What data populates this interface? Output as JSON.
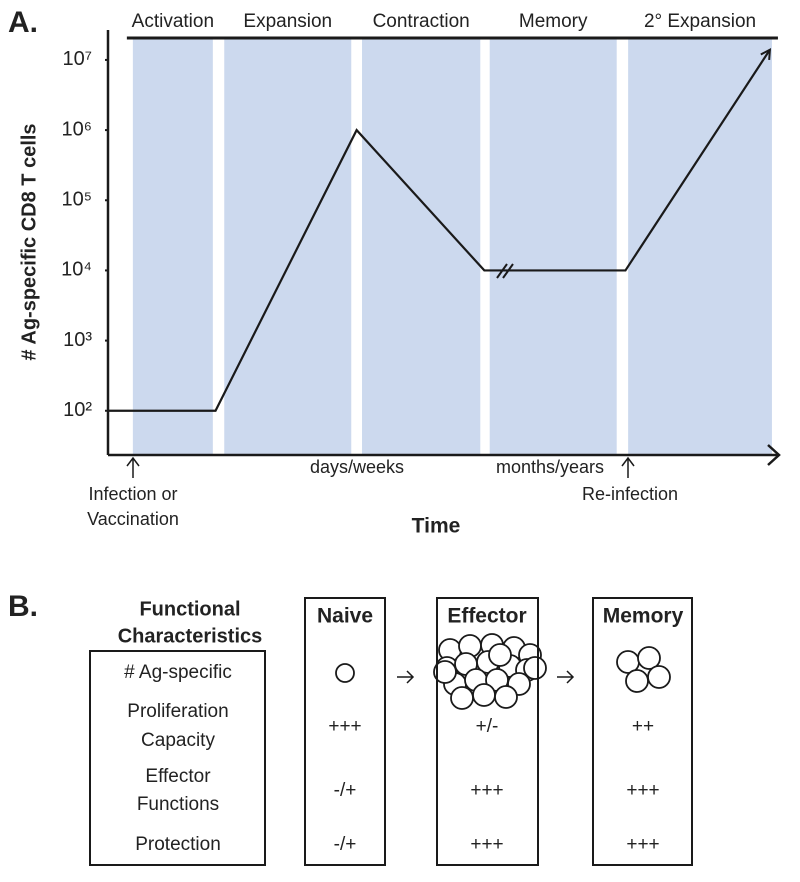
{
  "chart_data": {
    "type": "line",
    "panel_label": "A.",
    "y_label": "# Ag-specific CD8 T cells",
    "x_label": "Time",
    "log_y": true,
    "xlim": [
      0,
      100
    ],
    "ylim": [
      25,
      25000000
    ],
    "yticks": [
      {
        "value": 100,
        "label": "10²"
      },
      {
        "value": 1000,
        "label": "10³"
      },
      {
        "value": 10000,
        "label": "10⁴"
      },
      {
        "value": 100000,
        "label": "10⁵"
      },
      {
        "value": 1000000,
        "label": "10⁶"
      },
      {
        "value": 10000000,
        "label": "10⁷"
      }
    ],
    "x": [
      0,
      16,
      37,
      56,
      77,
      98.5
    ],
    "values": [
      100,
      100,
      1000000,
      10000,
      10000,
      14000000
    ],
    "color": "#1a1a1a",
    "band_color": "#ccd9ee",
    "phases": [
      {
        "label": "Activation",
        "start": 3.7,
        "end": 15.6
      },
      {
        "label": "Expansion",
        "start": 17.3,
        "end": 36.2
      },
      {
        "label": "Contraction",
        "start": 37.8,
        "end": 55.4
      },
      {
        "label": "Memory",
        "start": 56.8,
        "end": 75.7
      },
      {
        "label": "2° Expansion",
        "start": 77.4,
        "end": 98.8
      }
    ],
    "annotations": [
      [
        "Infection or",
        "Vaccination"
      ],
      [
        "days/weeks"
      ],
      [
        "months/years"
      ],
      [
        "Re-infection"
      ]
    ]
  },
  "panel_b": {
    "label": "B.",
    "header": [
      "Functional",
      "Characteristics"
    ],
    "row_labels": [
      [
        "# Ag-specific"
      ],
      [
        "Proliferation",
        "Capacity"
      ],
      [
        "Effector",
        "Functions"
      ],
      [
        "Protection"
      ]
    ],
    "columns": [
      {
        "name": "Naive",
        "values": [
          "+++",
          "-/+",
          "-/+"
        ]
      },
      {
        "name": "Effector",
        "values": [
          "+/-",
          "+++",
          "+++"
        ]
      },
      {
        "name": "Memory",
        "values": [
          "++",
          "+++",
          "+++"
        ]
      }
    ]
  }
}
